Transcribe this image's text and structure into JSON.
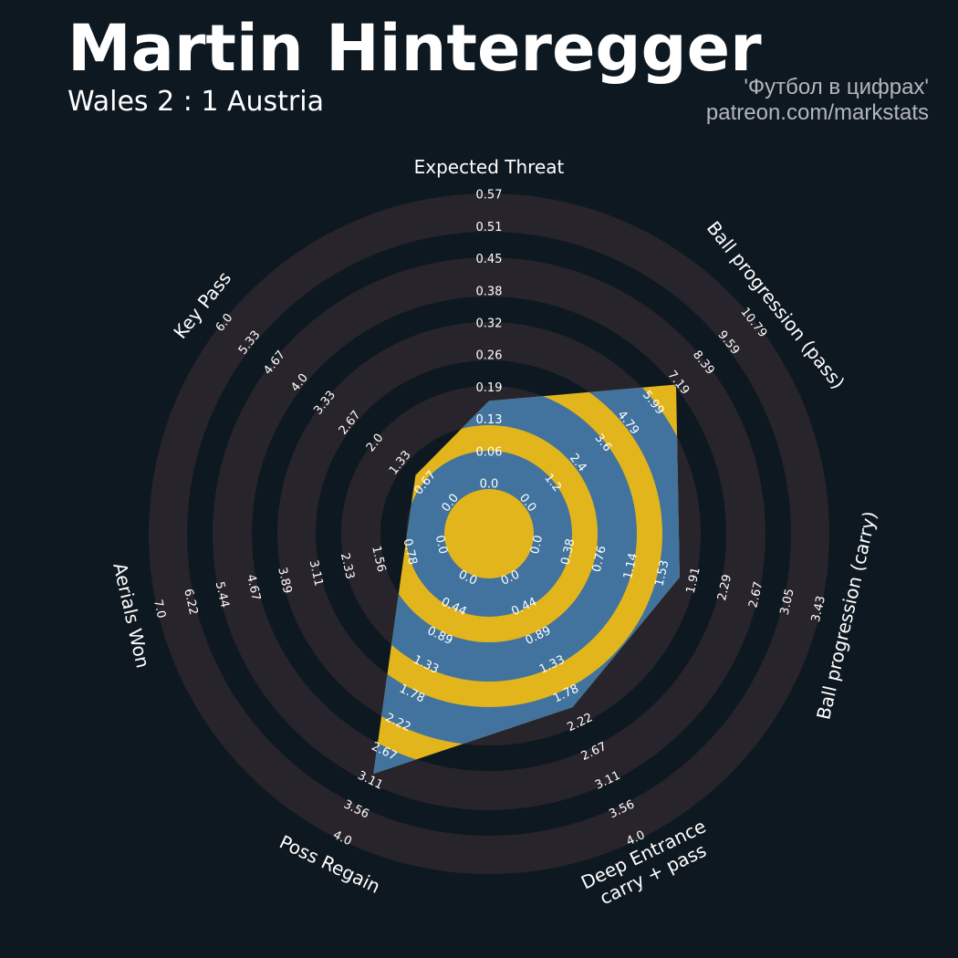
{
  "header": {
    "title": "Martin Hinteregger",
    "subtitle": "Wales 2 : 1 Austria",
    "credit_line1": "'Футбол в цифрах'",
    "credit_line2": "patreon.com/markstats"
  },
  "colors": {
    "background": "#0e1820",
    "ring": "#28242b",
    "player_ring": "#41739e",
    "player_gap": "#e3b51d",
    "text": "#ffffff",
    "credit": "#b3b6bb"
  },
  "chart_data": {
    "type": "radar",
    "params": [
      {
        "label": [
          "Expected Threat"
        ],
        "min": 0.0,
        "max": 0.57,
        "value": 0.17,
        "ticks": [
          "0.0",
          "0.06",
          "0.13",
          "0.19",
          "0.26",
          "0.32",
          "0.38",
          "0.45",
          "0.51",
          "0.57"
        ]
      },
      {
        "label": [
          "Ball progression (pass)"
        ],
        "min": 0.0,
        "max": 10.79,
        "value": 7.1,
        "ticks": [
          "0.0",
          "1.2",
          "2.4",
          "3.6",
          "4.79",
          "5.99",
          "7.19",
          "8.39",
          "9.59",
          "10.79"
        ]
      },
      {
        "label": [
          "Ball progression (carry)"
        ],
        "min": 0.0,
        "max": 3.43,
        "value": 1.75,
        "ticks": [
          "0.0",
          "0.38",
          "0.76",
          "1.14",
          "1.53",
          "1.91",
          "2.29",
          "2.67",
          "3.05",
          "3.43"
        ]
      },
      {
        "label": [
          "Deep Entrance",
          "carry + pass"
        ],
        "min": 0.0,
        "max": 4.0,
        "value": 2.0,
        "ticks": [
          "0.0",
          "0.44",
          "0.89",
          "1.33",
          "1.78",
          "2.22",
          "2.67",
          "3.11",
          "3.56",
          "4.0"
        ]
      },
      {
        "label": [
          "Poss Regain"
        ],
        "min": 0.0,
        "max": 4.0,
        "value": 3.0,
        "ticks": [
          "0.0",
          "0.44",
          "0.89",
          "1.33",
          "1.78",
          "2.22",
          "2.67",
          "3.11",
          "3.56",
          "4.0"
        ]
      },
      {
        "label": [
          "Aerials Won"
        ],
        "min": 0.0,
        "max": 7.0,
        "value": 1.0,
        "ticks": [
          "0.0",
          "0.78",
          "1.56",
          "2.33",
          "3.11",
          "3.89",
          "4.67",
          "5.44",
          "6.22",
          "7.0"
        ]
      },
      {
        "label": [
          "Key Pass"
        ],
        "min": 0.0,
        "max": 6.0,
        "value": 1.0,
        "ticks": [
          "0.0",
          "0.67",
          "1.33",
          "2.0",
          "2.67",
          "3.33",
          "4.0",
          "4.67",
          "5.33",
          "6.0"
        ]
      }
    ]
  }
}
